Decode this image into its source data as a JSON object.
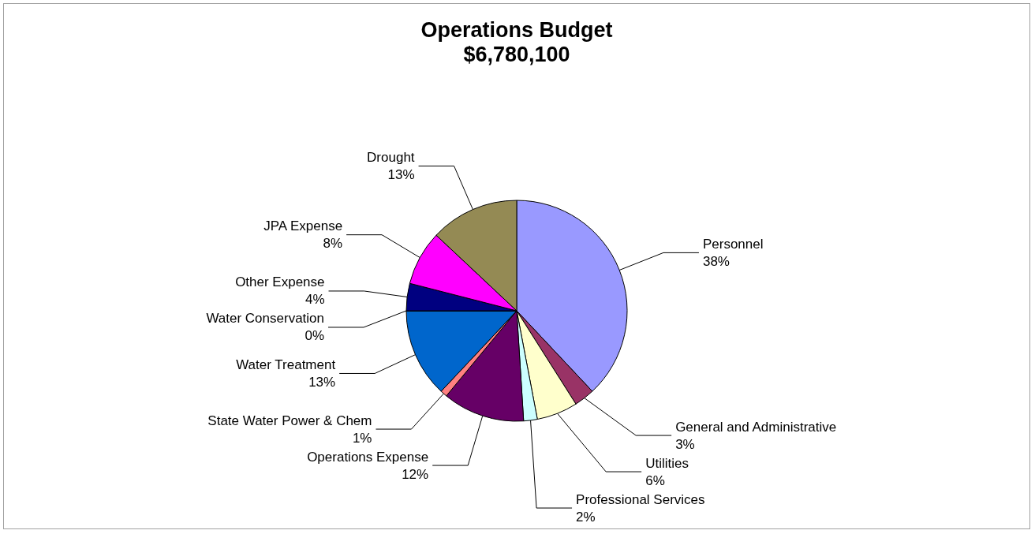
{
  "chart_data": {
    "type": "pie",
    "title": "Operations Budget",
    "subtitle": "$6,780,100",
    "categories": [
      "Personnel",
      "General and Administrative",
      "Utilities",
      "Professional Services",
      "Operations Expense",
      "State Water Power & Chem",
      "Water Treatment",
      "Water Conservation",
      "Other Expense",
      "JPA Expense",
      "Drought"
    ],
    "values": [
      38,
      3,
      6,
      2,
      12,
      1,
      13,
      0,
      4,
      8,
      13
    ],
    "value_labels": [
      "38%",
      "3%",
      "6%",
      "2%",
      "12%",
      "1%",
      "13%",
      "0%",
      "4%",
      "8%",
      "13%"
    ],
    "colors": [
      "#9999ff",
      "#993366",
      "#ffffcc",
      "#ccffff",
      "#660066",
      "#ff8080",
      "#0066cc",
      "#ccccff",
      "#000080",
      "#ff00ff",
      "#948a54"
    ],
    "legend": false
  }
}
